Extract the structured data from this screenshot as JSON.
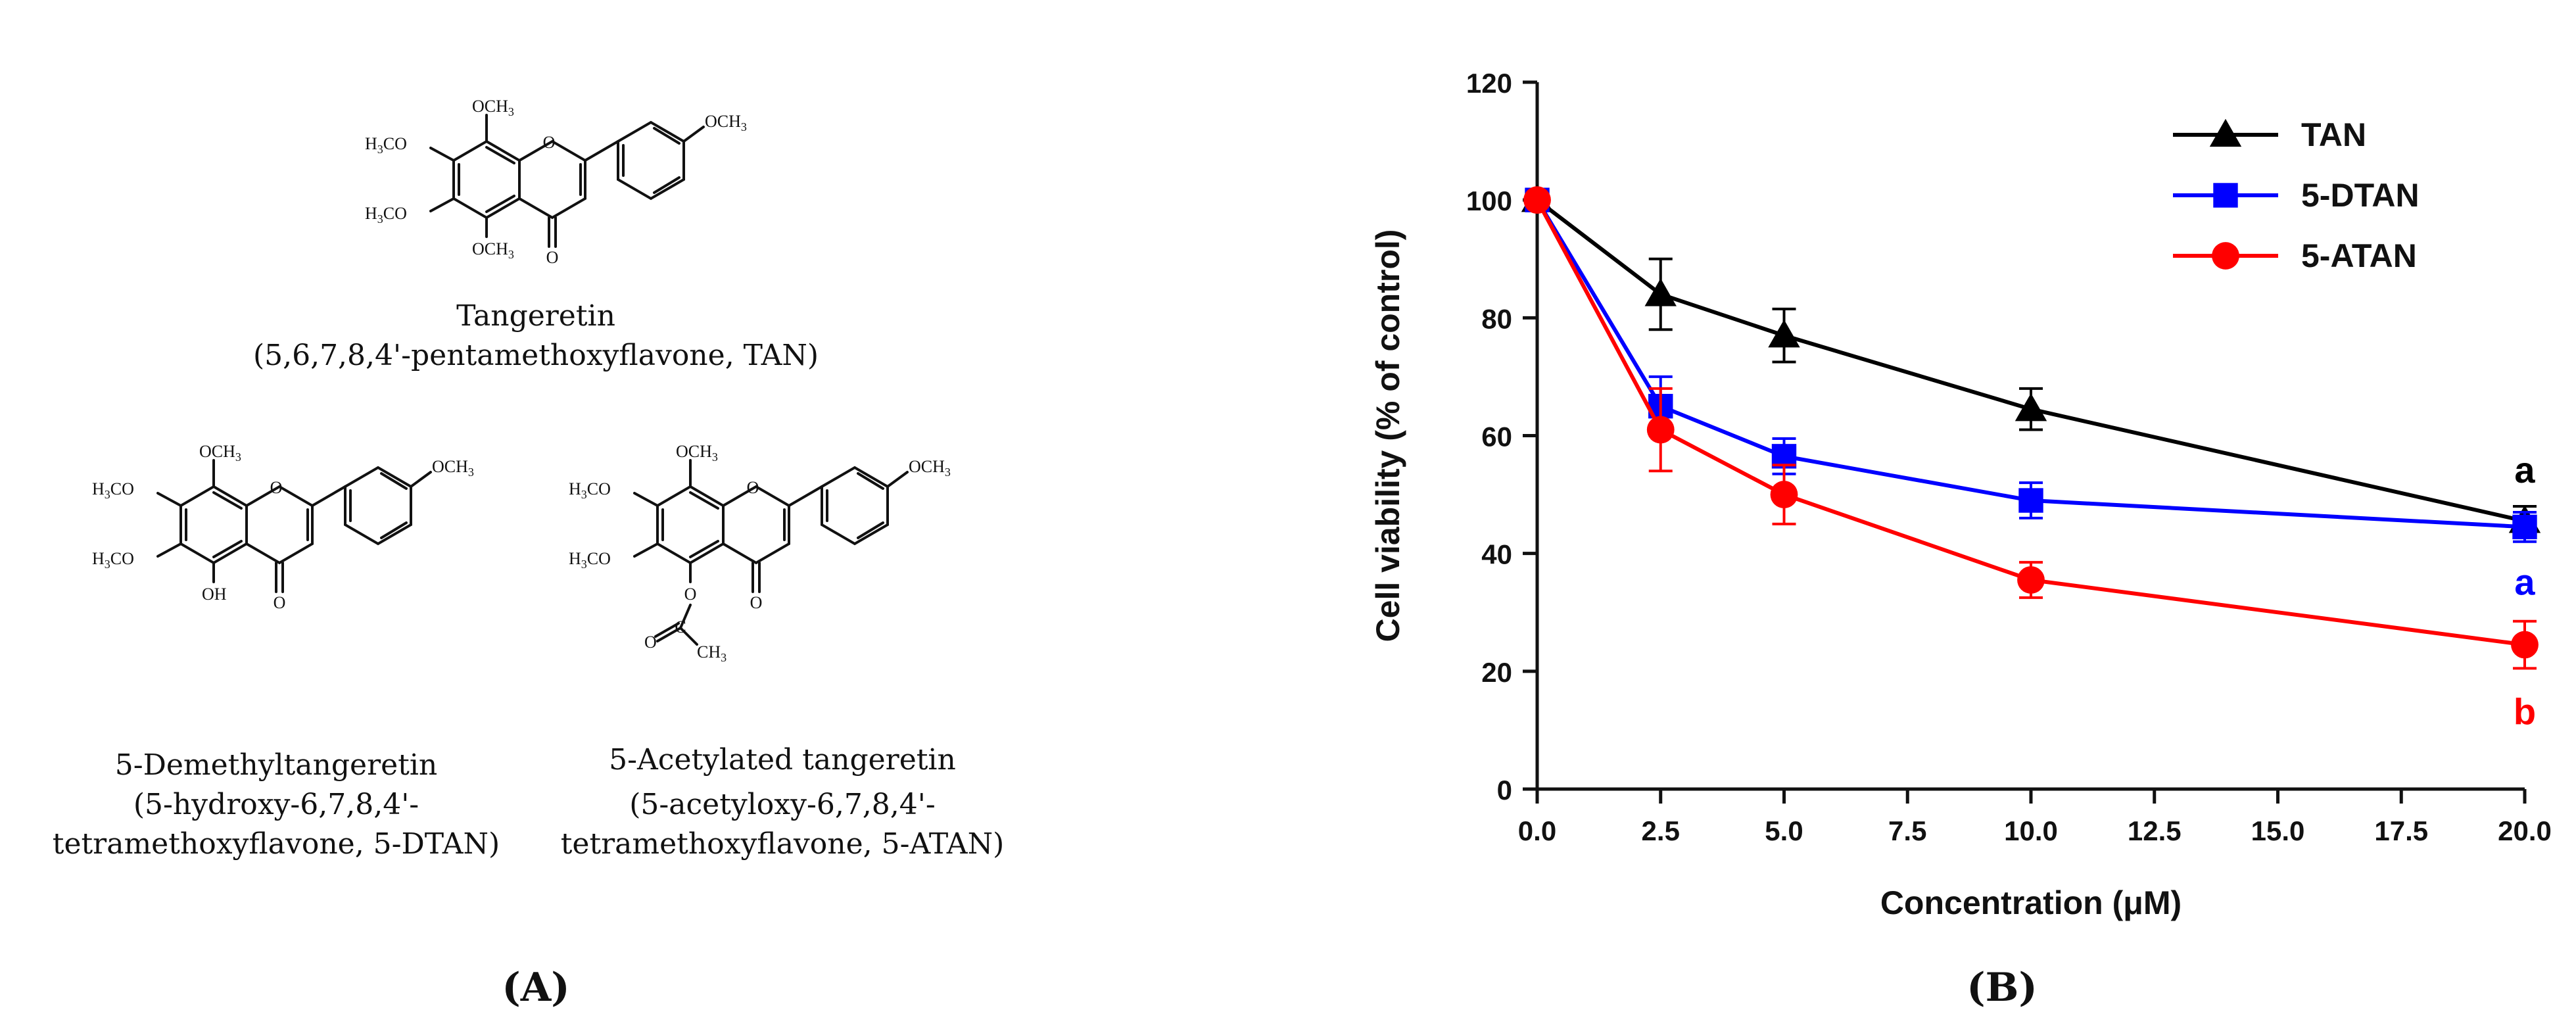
{
  "panel_a": {
    "label": "(A)",
    "compounds": [
      {
        "name": "Tangeretin",
        "desc": "(5,6,7,8,4'-pentamethoxyflavone, TAN)"
      },
      {
        "name": "5-Demethyltangeretin",
        "desc1": "(5-hydroxy-6,7,8,4'-",
        "desc2": "tetramethoxyflavone, 5-DTAN)"
      },
      {
        "name": "5-Acetylated tangeretin",
        "desc1": "(5-acetyloxy-6,7,8,4'-",
        "desc2": "tetramethoxyflavone, 5-ATAN)"
      }
    ],
    "atoms": {
      "och3": "OCH",
      "h3co": "H",
      "co": "CO",
      "o": "O",
      "oh": "OH",
      "c": "C",
      "ch3": "CH",
      "sub3": "3"
    }
  },
  "panel_b": {
    "label": "(B)"
  },
  "chart_data": {
    "type": "line",
    "xlabel": "Concentration (μM)",
    "ylabel": "Cell viability (% of control)",
    "xlim": [
      0,
      20
    ],
    "ylim": [
      0,
      120
    ],
    "xticks": [
      "0.0",
      "2.5",
      "5.0",
      "7.5",
      "10.0",
      "12.5",
      "15.0",
      "17.5",
      "20.0"
    ],
    "yticks": [
      "0",
      "20",
      "40",
      "60",
      "80",
      "100",
      "120"
    ],
    "legend_position": "top-right",
    "grid": false,
    "series": [
      {
        "name": "TAN",
        "color": "#000000",
        "marker": "triangle",
        "x": [
          0,
          2.5,
          5,
          10,
          20
        ],
        "y": [
          100,
          84,
          77,
          64.5,
          45.5
        ],
        "err": [
          0,
          6,
          4.5,
          3.5,
          2.5
        ]
      },
      {
        "name": "5-DTAN",
        "color": "#0000ff",
        "marker": "square",
        "x": [
          0,
          2.5,
          5,
          10,
          20
        ],
        "y": [
          100,
          65,
          56.5,
          49,
          44.5
        ],
        "err": [
          0,
          5,
          3,
          3,
          2.5
        ]
      },
      {
        "name": "5-ATAN",
        "color": "#ff0000",
        "marker": "circle",
        "x": [
          0,
          2.5,
          5,
          10,
          20
        ],
        "y": [
          100,
          61,
          50,
          35.5,
          24.5
        ],
        "err": [
          0,
          7,
          5,
          3,
          4
        ]
      }
    ],
    "annotations": [
      {
        "text": "a",
        "color": "#000000"
      },
      {
        "text": "a",
        "color": "#0000ff"
      },
      {
        "text": "b",
        "color": "#ff0000"
      }
    ]
  }
}
